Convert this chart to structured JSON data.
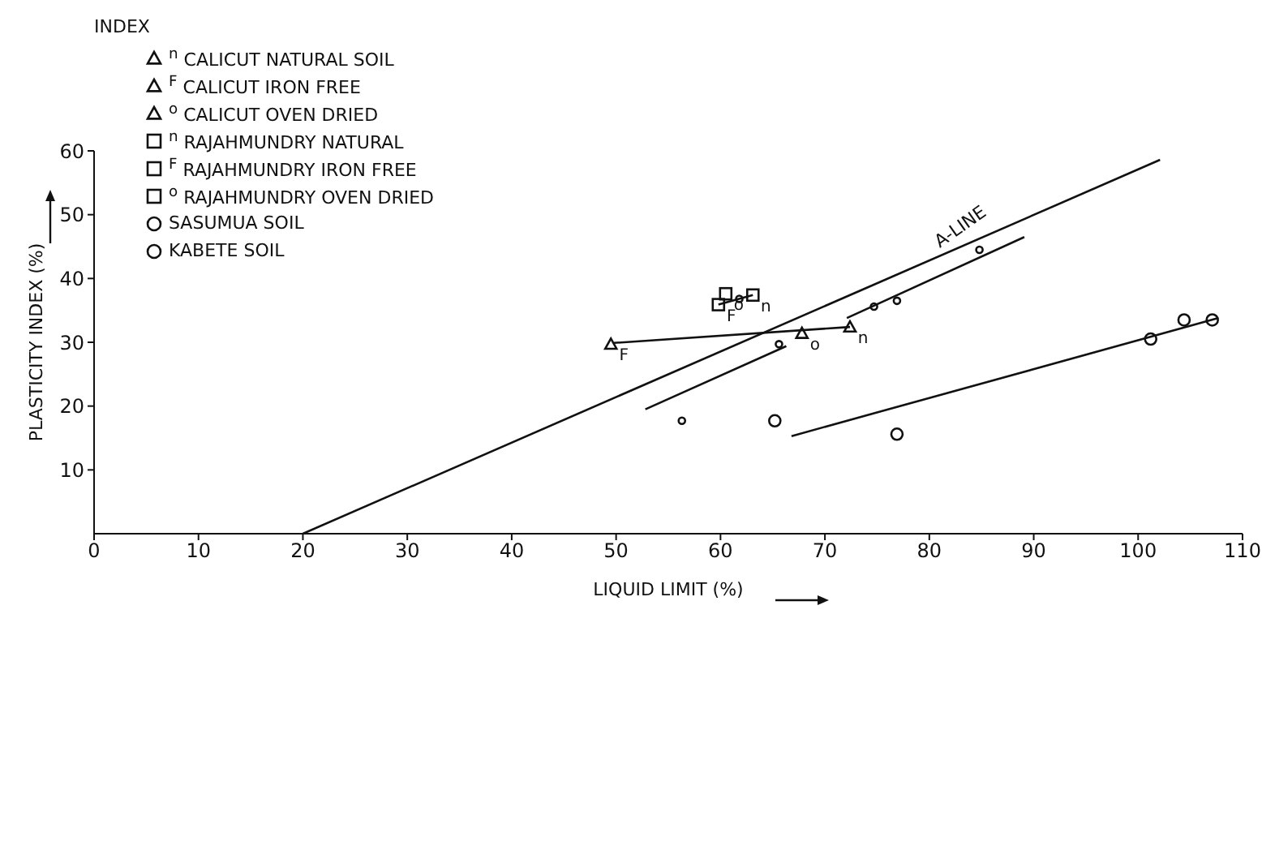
{
  "chart_data": {
    "type": "scatter",
    "xlabel": "LIQUID LIMIT (%)",
    "ylabel": "PLASTICITY INDEX (%)",
    "legend_title": "INDEX",
    "legend": "top left",
    "grid": false,
    "xlim": [
      0,
      110
    ],
    "xticks": [
      0,
      10,
      20,
      30,
      40,
      50,
      60,
      70,
      80,
      90,
      100,
      110
    ],
    "ylim": [
      0,
      60
    ],
    "yticks": [
      10,
      20,
      30,
      40,
      50,
      60
    ],
    "series": [
      {
        "name": "$^{n}$ CALICUT NATURAL SOIL",
        "color": "#111111",
        "marker": "triangle",
        "x": [
          72.4
        ],
        "values": [
          32.4
        ]
      },
      {
        "name": "$^{F}$ CALICUT IRON FREE",
        "color": "#111111",
        "marker": "triangle",
        "x": [
          49.5
        ],
        "values": [
          29.7
        ]
      },
      {
        "name": "$^{o}$ CALICUT OVEN DRIED",
        "color": "#111111",
        "marker": "triangle",
        "x": [
          67.8
        ],
        "values": [
          31.4
        ]
      },
      {
        "name": "$^{n}$ RAJAHMUNDRY NATURAL",
        "color": "#111111",
        "marker": "square",
        "x": [
          63.1
        ],
        "values": [
          37.4
        ]
      },
      {
        "name": "$^{F}$ RAJAHMUNDRY IRON FREE",
        "color": "#111111",
        "marker": "square",
        "x": [
          59.8
        ],
        "values": [
          35.9
        ]
      },
      {
        "name": "$^{o}$ RAJAHMUNDRY OVEN DRIED",
        "color": "#111111",
        "marker": "square",
        "x": [
          60.5
        ],
        "values": [
          37.6
        ]
      },
      {
        "name": "SASUMUA SOIL",
        "color": "#111111",
        "marker": "circle",
        "x": [
          84.8,
          74.7,
          76.9,
          65.6,
          56.3,
          61.8
        ],
        "values": [
          44.5,
          35.6,
          36.5,
          29.7,
          17.7,
          36.8
        ]
      },
      {
        "name": "KABETE SOIL",
        "color": "#111111",
        "marker": "circle",
        "x": [
          65.2,
          76.9,
          101.2,
          104.4,
          107.1
        ],
        "values": [
          17.7,
          15.6,
          30.5,
          33.5,
          33.5
        ]
      },
      {
        "type": "line",
        "color": "#111111",
        "x": [
          20,
          102.1
        ],
        "values": [
          0,
          58.6
        ]
      },
      {
        "type": "line",
        "color": "#111111",
        "x": [
          52.8,
          66.3,
          69,
          72.1,
          89.1
        ],
        "values": [
          19.5,
          29.4,
          null,
          33.8,
          46.5
        ]
      },
      {
        "type": "line",
        "color": "#111111",
        "x": [
          66.8,
          107.7
        ],
        "values": [
          15.3,
          33.8
        ]
      },
      {
        "type": "line",
        "color": "#111111",
        "x": [
          72.4,
          49.8
        ],
        "values": [
          32.4,
          29.9
        ]
      },
      {
        "type": "line",
        "color": "#111111",
        "x": [
          59.8,
          63.1
        ],
        "values": [
          35.9,
          37.4
        ]
      }
    ],
    "annotations": [
      {
        "text": "A-LINE",
        "x": 84,
        "y": 45.7
      },
      {
        "text": "n",
        "x": 72.4,
        "y": 32.4
      },
      {
        "text": "F",
        "x": 49.5,
        "y": 29.7
      },
      {
        "text": "o",
        "x": 67.8,
        "y": 31.4
      },
      {
        "text": "n",
        "x": 63.1,
        "y": 37.4
      },
      {
        "text": "F",
        "x": 59.8,
        "y": 35.9
      },
      {
        "text": "o",
        "x": 60.5,
        "y": 37.6
      }
    ]
  }
}
